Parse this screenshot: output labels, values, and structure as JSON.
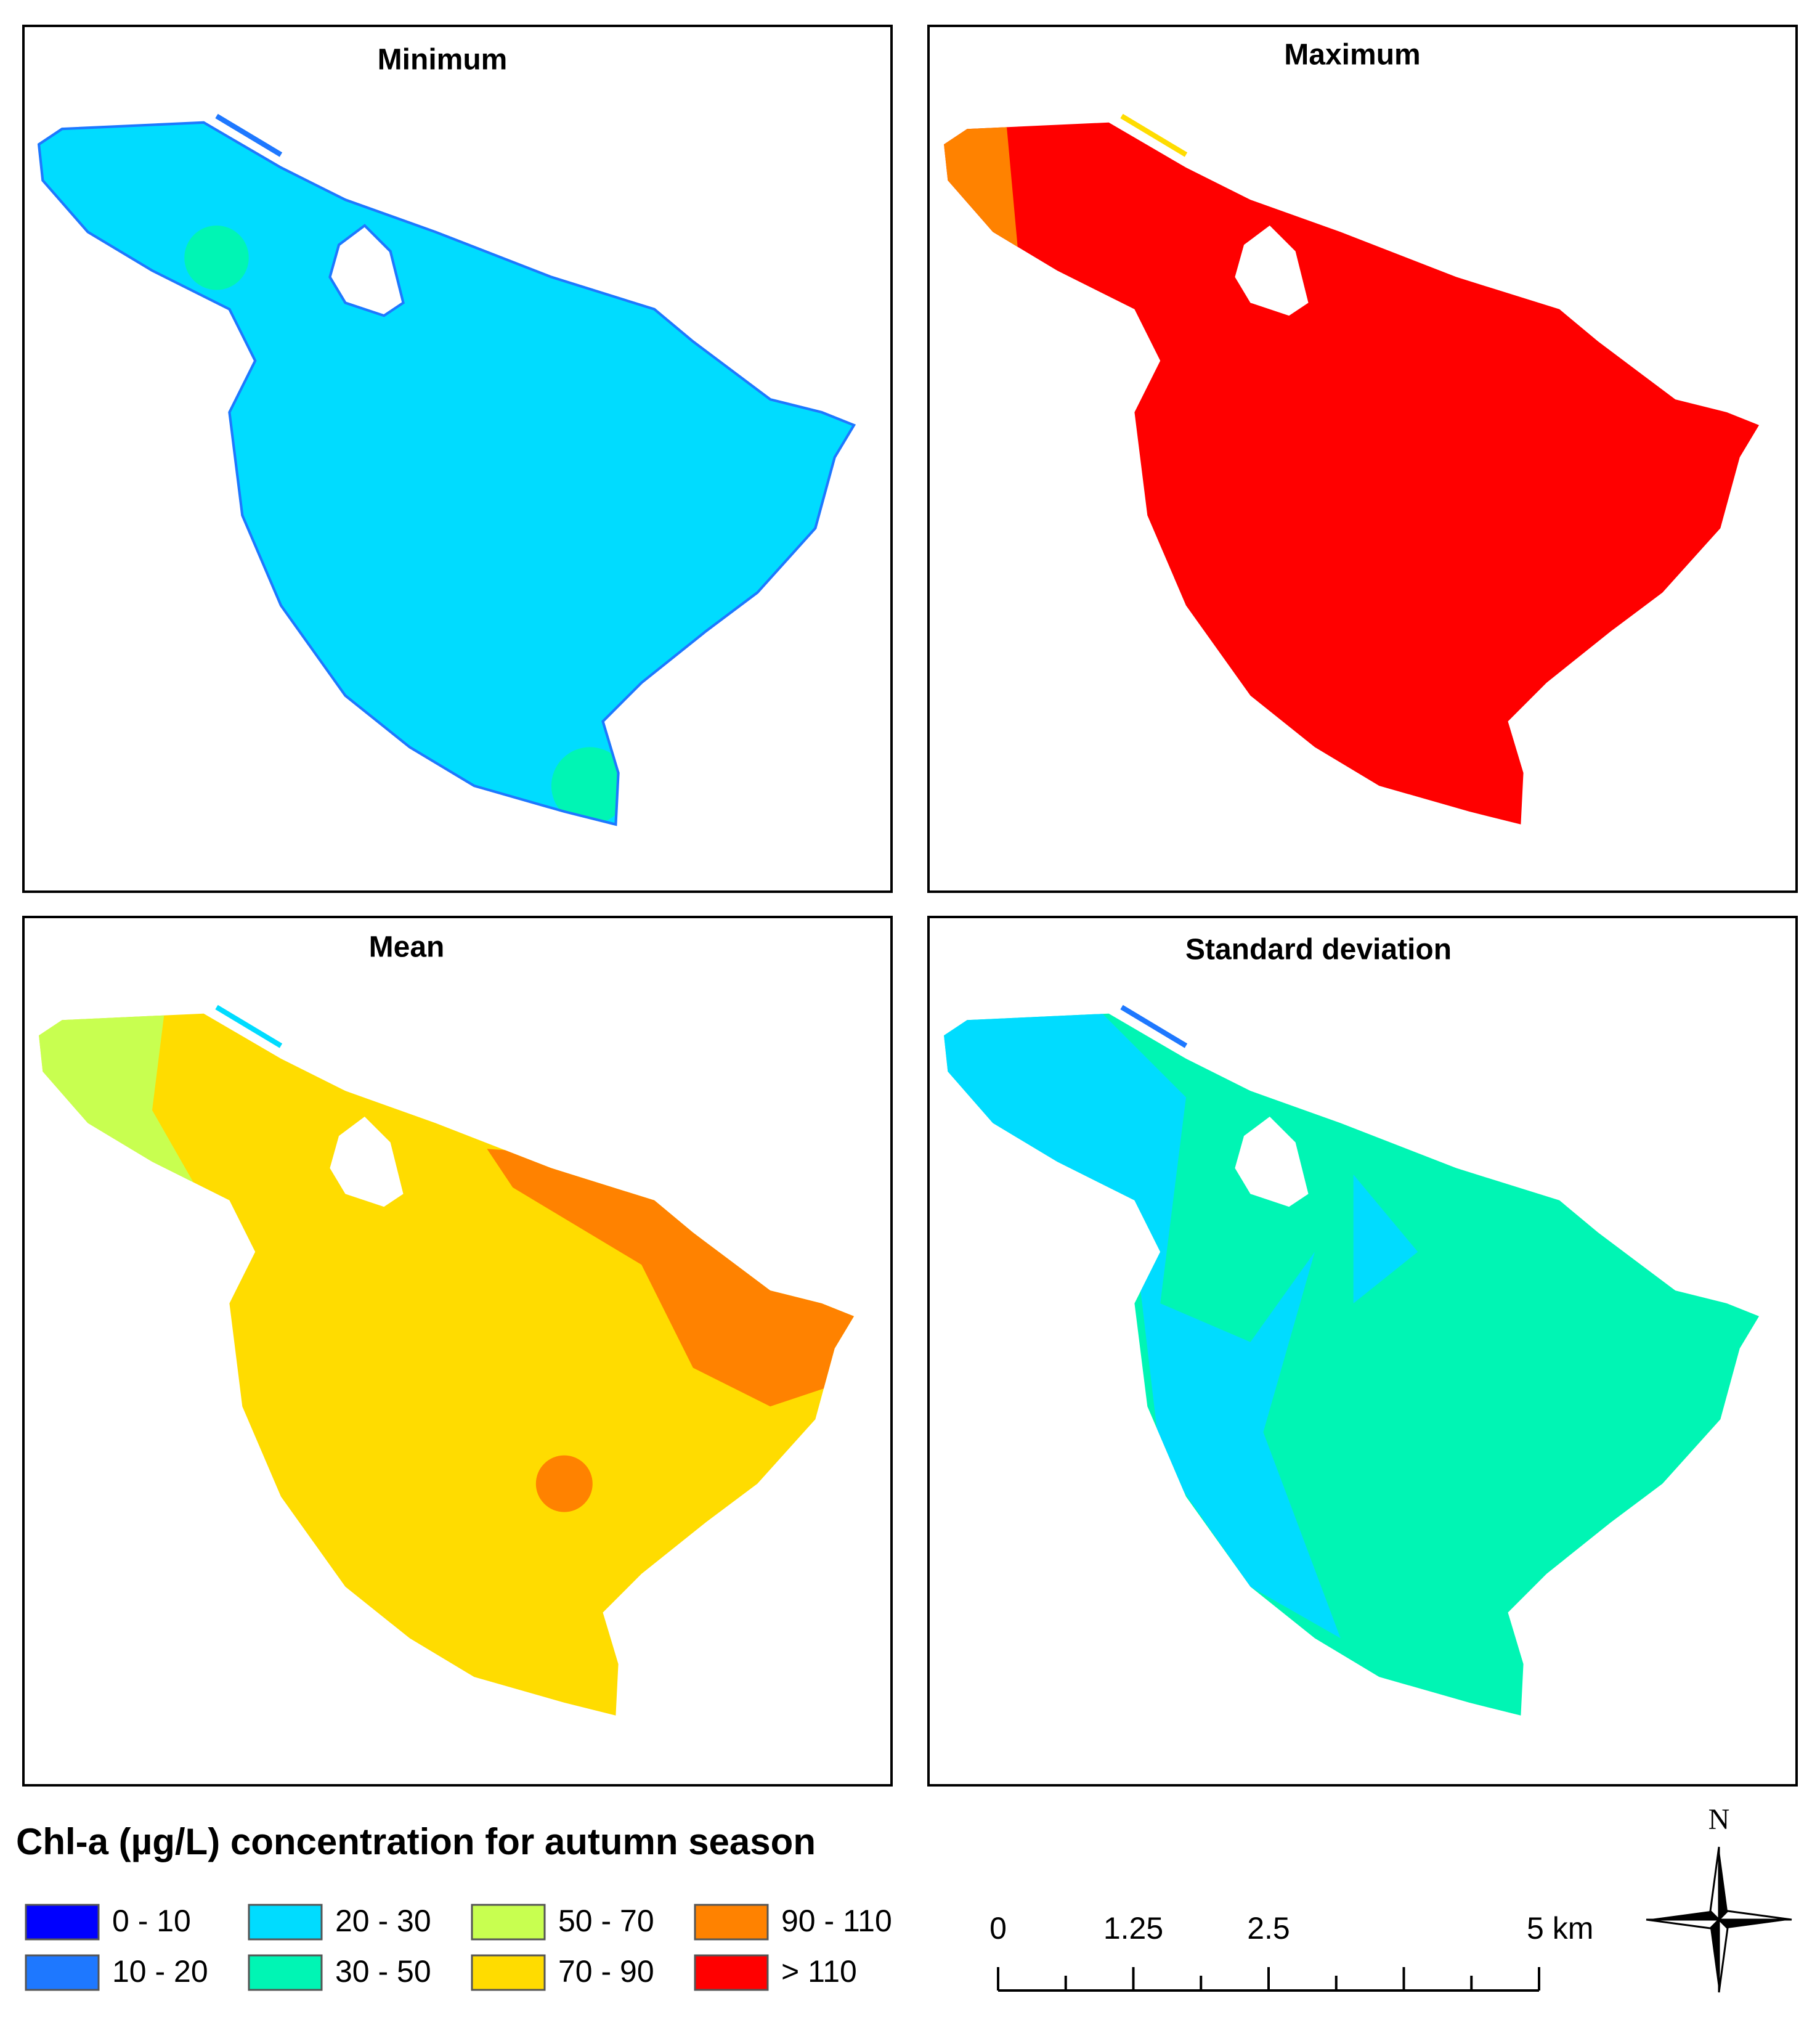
{
  "panels": [
    {
      "title": "Minimum"
    },
    {
      "title": "Maximum"
    },
    {
      "title": "Mean"
    },
    {
      "title": "Standard deviation"
    }
  ],
  "legend": {
    "title": "Chl-a (µg/L) concentration for autumn season",
    "items": [
      {
        "label": "0 - 10",
        "color": "#0000ff"
      },
      {
        "label": "10 - 20",
        "color": "#1e78ff"
      },
      {
        "label": "20 - 30",
        "color": "#00dcff"
      },
      {
        "label": "30 - 50",
        "color": "#00f5b4"
      },
      {
        "label": "50 - 70",
        "color": "#c8ff50"
      },
      {
        "label": "70 - 90",
        "color": "#ffdc00"
      },
      {
        "label": "90 - 110",
        "color": "#ff8200"
      },
      {
        "label": "> 110",
        "color": "#ff0000"
      }
    ]
  },
  "scale_bar": {
    "labels": [
      "0",
      "1.25",
      "2.5",
      "5 km"
    ]
  },
  "north_arrow": {
    "label": "N"
  }
}
